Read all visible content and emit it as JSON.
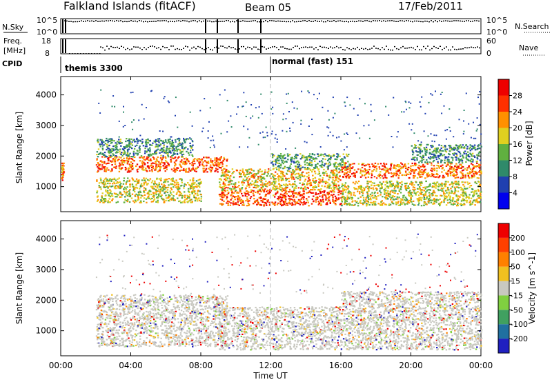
{
  "header": {
    "station": "Falkland Islands (fitACF)",
    "beam": "Beam 05",
    "date": "17/Feb/2011"
  },
  "summary_panels": {
    "nsky_label": "N.Sky",
    "nsky_ticks": [
      "10^5",
      "10^0"
    ],
    "nsearch_label": "N.Search",
    "nsearch_ticks": [
      "10^5",
      "10^0"
    ],
    "freq_label_1": "Freq.",
    "freq_label_2": "[MHz]",
    "freq_ticks": [
      "18",
      "8"
    ],
    "nave_label": "Nave",
    "nave_ticks": [
      "60",
      "0"
    ],
    "cpid_label": "CPID",
    "cpid_segments": [
      {
        "name": "themis 3300",
        "start_hour": 0
      },
      {
        "name": "normal (fast) 151",
        "start_hour": 12
      }
    ]
  },
  "chart_data": [
    {
      "type": "heatmap",
      "parameter": "Power",
      "colorbar_label": "Power [dB]",
      "colorbar_ticks": [
        "4",
        "8",
        "12",
        "16",
        "20",
        "24",
        "28"
      ],
      "colorbar_colors": [
        "#0000ee",
        "#2040b0",
        "#2f8a6a",
        "#60b040",
        "#e0d020",
        "#ff9000",
        "#ff3000",
        "#ee0000"
      ],
      "ylabel": "Slant Range [km]",
      "yticks": [
        1000,
        2000,
        3000,
        4000
      ],
      "ylim": [
        180,
        4600
      ],
      "xlim_hours": [
        0,
        24
      ],
      "echo_regions": [
        {
          "start_hour": 0.0,
          "end_hour": 0.15,
          "range_min_km": 1200,
          "range_max_km": 1800,
          "power_db": 24
        },
        {
          "start_hour": 2.0,
          "end_hour": 9.5,
          "range_min_km": 1500,
          "range_max_km": 2000,
          "power_db": 26
        },
        {
          "start_hour": 2.0,
          "end_hour": 8.0,
          "range_min_km": 500,
          "range_max_km": 1300,
          "power_db": 18
        },
        {
          "start_hour": 2.0,
          "end_hour": 7.5,
          "range_min_km": 2000,
          "range_max_km": 2600,
          "power_db": 10
        },
        {
          "start_hour": 9.0,
          "end_hour": 16.0,
          "range_min_km": 400,
          "range_max_km": 900,
          "power_db": 27
        },
        {
          "start_hour": 9.0,
          "end_hour": 16.0,
          "range_min_km": 900,
          "range_max_km": 1600,
          "power_db": 20
        },
        {
          "start_hour": 12.0,
          "end_hour": 16.5,
          "range_min_km": 1600,
          "range_max_km": 2100,
          "power_db": 12
        },
        {
          "start_hour": 16.0,
          "end_hour": 24.0,
          "range_min_km": 1300,
          "range_max_km": 1800,
          "power_db": 25
        },
        {
          "start_hour": 16.0,
          "end_hour": 24.0,
          "range_min_km": 400,
          "range_max_km": 1200,
          "power_db": 18
        },
        {
          "start_hour": 20.0,
          "end_hour": 24.0,
          "range_min_km": 1800,
          "range_max_km": 2400,
          "power_db": 10
        }
      ]
    },
    {
      "type": "heatmap",
      "parameter": "Velocity",
      "colorbar_label": "Velocity [m s^-1]",
      "colorbar_ticks": [
        "200",
        "100",
        "50",
        "15",
        "-15",
        "-50",
        "-100",
        "-200"
      ],
      "colorbar_colors": [
        "#2020c0",
        "#2070a0",
        "#40a060",
        "#80d040",
        "#c8c8c0",
        "#f0c020",
        "#ff8000",
        "#ff4000",
        "#ee0000"
      ],
      "ylabel": "Slant Range [km]",
      "yticks": [
        1000,
        2000,
        3000,
        4000
      ],
      "ylim": [
        180,
        4600
      ],
      "xlim_hours": [
        0,
        24
      ],
      "xticks": [
        "00:00",
        "04:00",
        "08:00",
        "12:00",
        "16:00",
        "20:00",
        "00:00"
      ],
      "xlabel": "Time UT",
      "echo_regions": [
        {
          "start_hour": 2.0,
          "end_hour": 9.5,
          "range_min_km": 500,
          "range_max_km": 2200,
          "velocity": 0
        },
        {
          "start_hour": 9.0,
          "end_hour": 16.0,
          "range_min_km": 400,
          "range_max_km": 1800,
          "velocity": 0
        },
        {
          "start_hour": 16.0,
          "end_hour": 24.0,
          "range_min_km": 400,
          "range_max_km": 2300,
          "velocity": 0
        }
      ]
    }
  ]
}
